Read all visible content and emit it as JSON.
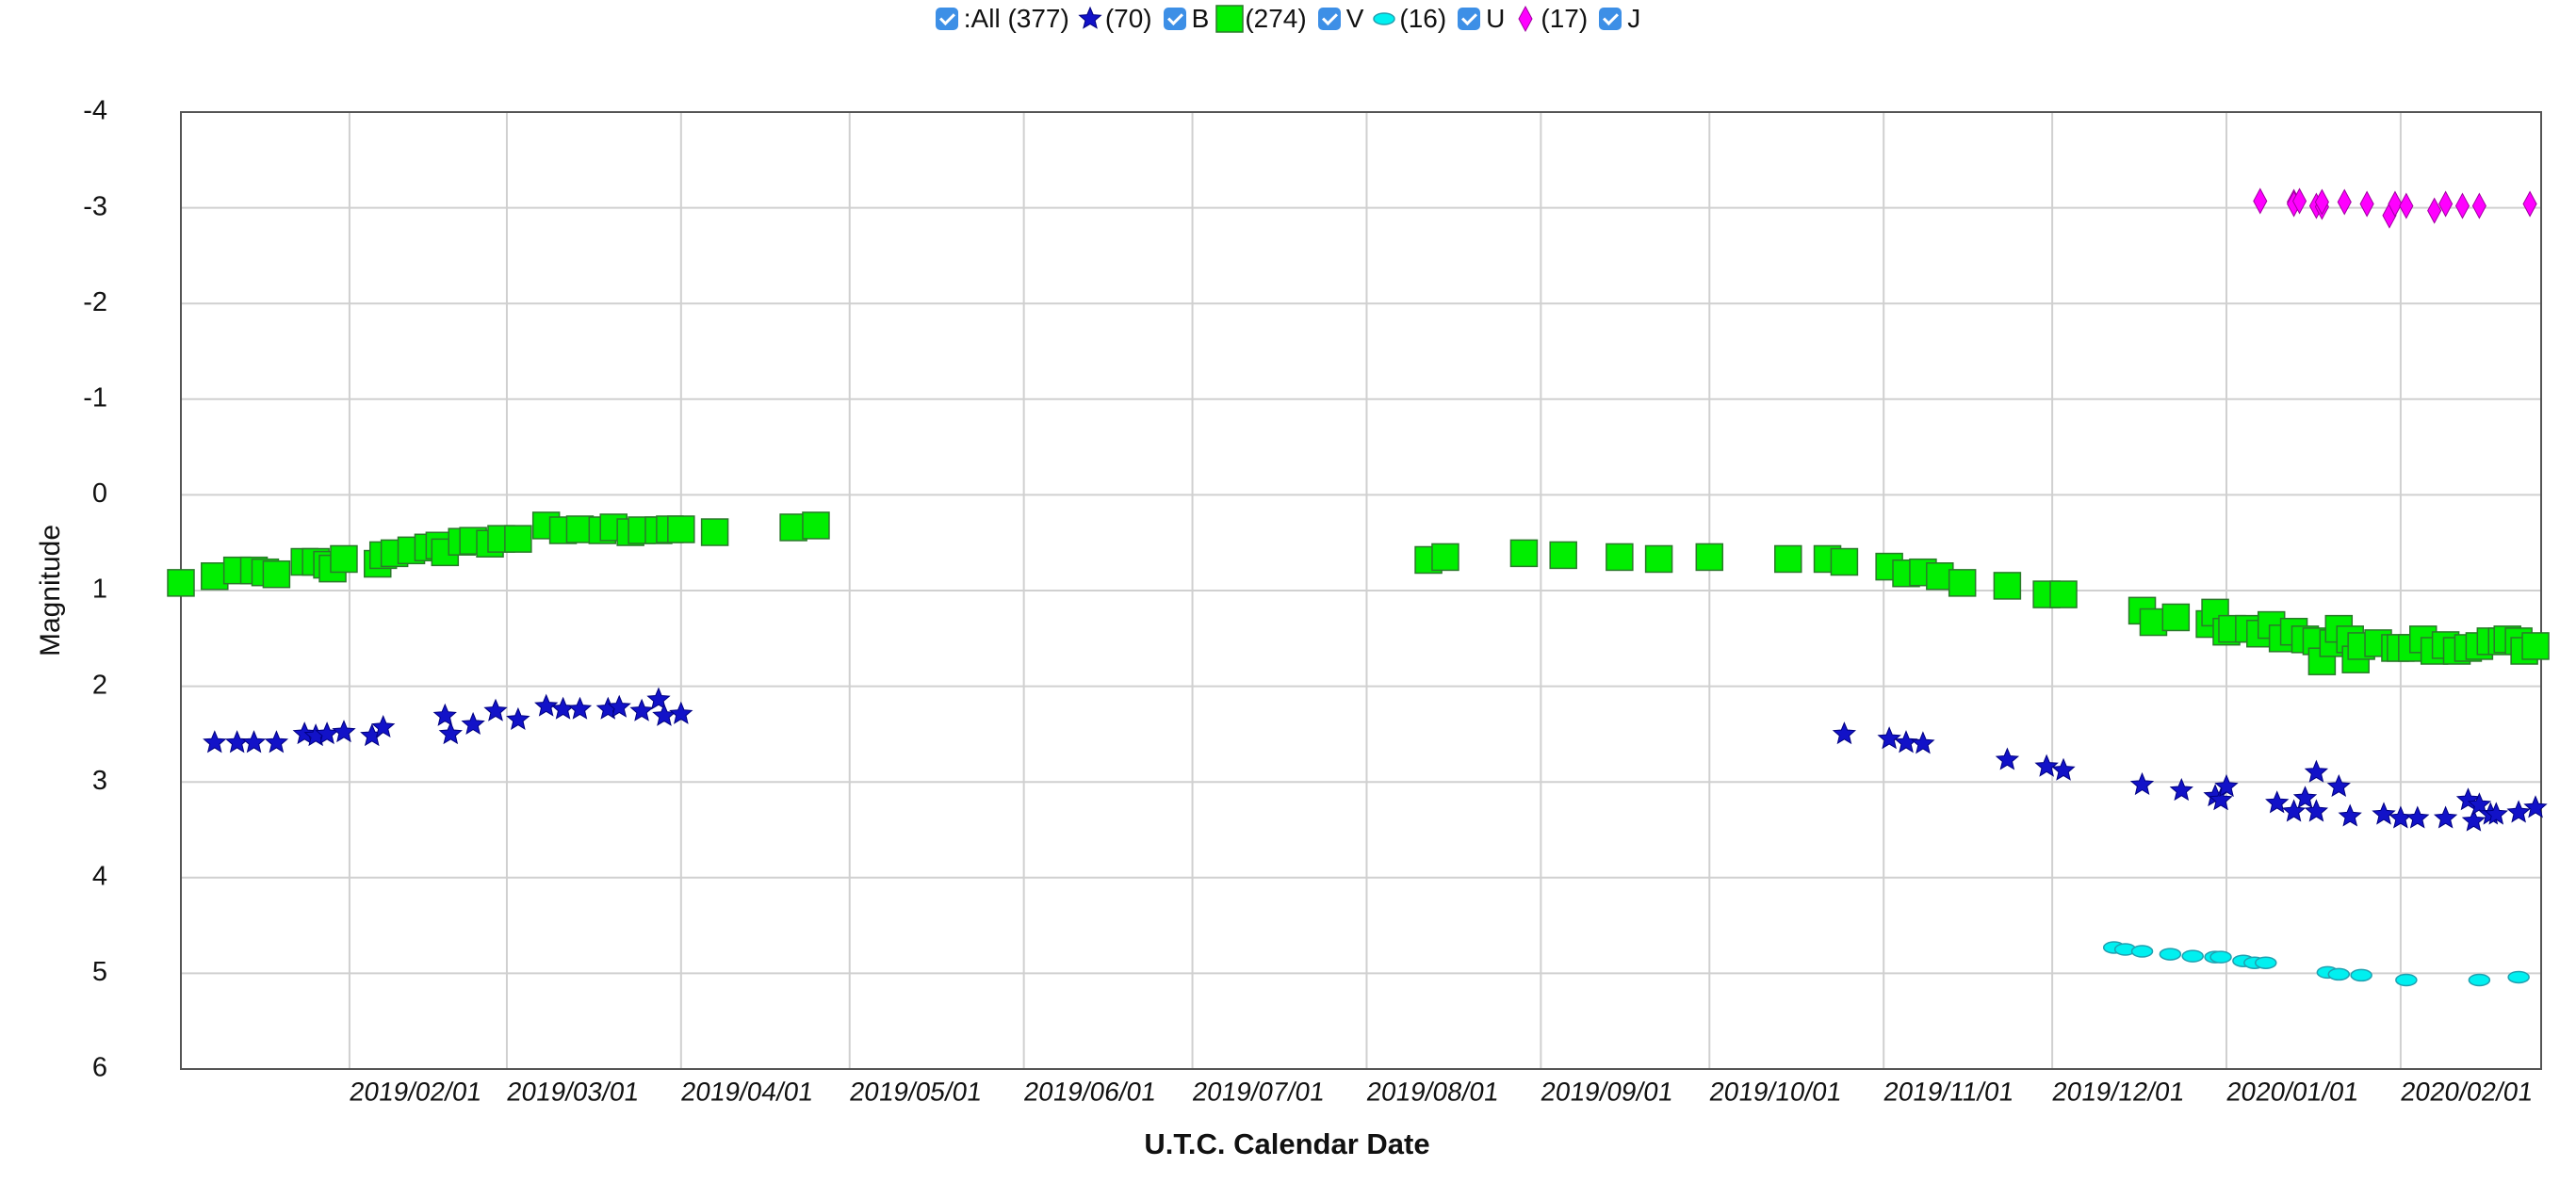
{
  "chart_data": {
    "type": "scatter",
    "legend_all": ":All (377)",
    "xlabel": "U.T.C. Calendar Date",
    "ylabel": "Magnitude",
    "xlim": [
      "2019/01/02",
      "2020/02/26"
    ],
    "xticks": [
      "2019/02/01",
      "2019/03/01",
      "2019/04/01",
      "2019/05/01",
      "2019/06/01",
      "2019/07/01",
      "2019/08/01",
      "2019/09/01",
      "2019/10/01",
      "2019/11/01",
      "2019/12/01",
      "2020/01/01",
      "2020/02/01"
    ],
    "ylim": [
      6,
      -4
    ],
    "yticks": [
      -4,
      -3,
      -2,
      -1,
      0,
      1,
      2,
      3,
      4,
      5,
      6
    ],
    "grid": true,
    "series": [
      {
        "name": "B",
        "count_label": "(70)",
        "marker": "star",
        "color": "#1212c8",
        "x": [
          "2019/01/08",
          "2019/01/12",
          "2019/01/15",
          "2019/01/19",
          "2019/01/24",
          "2019/01/26",
          "2019/01/28",
          "2019/01/31",
          "2019/02/05",
          "2019/02/07",
          "2019/02/18",
          "2019/02/19",
          "2019/02/23",
          "2019/02/27",
          "2019/03/03",
          "2019/03/08",
          "2019/03/11",
          "2019/03/14",
          "2019/03/19",
          "2019/03/21",
          "2019/03/25",
          "2019/03/28",
          "2019/03/29",
          "2019/04/01",
          "2019/10/25",
          "2019/11/02",
          "2019/11/05",
          "2019/11/08",
          "2019/11/23",
          "2019/11/30",
          "2019/12/03",
          "2019/12/17",
          "2019/12/24",
          "2019/12/30",
          "2019/12/31",
          "2020/01/01",
          "2020/01/10",
          "2020/01/13",
          "2020/01/15",
          "2020/01/17",
          "2020/01/17",
          "2020/01/21",
          "2020/01/23",
          "2020/01/29",
          "2020/02/01",
          "2020/02/04",
          "2020/02/09",
          "2020/02/13",
          "2020/02/14",
          "2020/02/15",
          "2020/02/17",
          "2020/02/18",
          "2020/02/22",
          "2020/02/25"
        ],
        "values": [
          2.59,
          2.59,
          2.59,
          2.59,
          2.5,
          2.52,
          2.5,
          2.48,
          2.52,
          2.43,
          2.31,
          2.5,
          2.4,
          2.26,
          2.35,
          2.21,
          2.24,
          2.24,
          2.24,
          2.22,
          2.26,
          2.14,
          2.31,
          2.29,
          2.5,
          2.55,
          2.59,
          2.6,
          2.77,
          2.84,
          2.88,
          3.03,
          3.09,
          3.15,
          3.19,
          3.05,
          3.22,
          3.31,
          3.17,
          3.31,
          2.9,
          3.05,
          3.36,
          3.34,
          3.38,
          3.38,
          3.38,
          3.19,
          3.41,
          3.24,
          3.34,
          3.34,
          3.32,
          3.27
        ]
      },
      {
        "name": "V",
        "count_label": "(274)",
        "marker": "square",
        "color": "#00ee00",
        "x": [
          "2019/01/02",
          "2019/01/08",
          "2019/01/12",
          "2019/01/15",
          "2019/01/17",
          "2019/01/19",
          "2019/01/24",
          "2019/01/26",
          "2019/01/28",
          "2019/01/29",
          "2019/01/31",
          "2019/02/06",
          "2019/02/07",
          "2019/02/09",
          "2019/02/12",
          "2019/02/15",
          "2019/02/17",
          "2019/02/18",
          "2019/02/21",
          "2019/02/23",
          "2019/02/26",
          "2019/02/28",
          "2019/03/03",
          "2019/03/08",
          "2019/03/11",
          "2019/03/14",
          "2019/03/18",
          "2019/03/20",
          "2019/03/23",
          "2019/03/25",
          "2019/03/28",
          "2019/03/30",
          "2019/04/01",
          "2019/04/07",
          "2019/04/21",
          "2019/04/25",
          "2019/08/12",
          "2019/08/15",
          "2019/08/29",
          "2019/09/05",
          "2019/09/15",
          "2019/09/22",
          "2019/10/01",
          "2019/10/15",
          "2019/10/22",
          "2019/10/25",
          "2019/11/02",
          "2019/11/05",
          "2019/11/08",
          "2019/11/11",
          "2019/11/15",
          "2019/11/23",
          "2019/11/30",
          "2019/12/03",
          "2019/12/17",
          "2019/12/19",
          "2019/12/23",
          "2019/12/29",
          "2019/12/30",
          "2020/01/01",
          "2020/01/02",
          "2020/01/05",
          "2020/01/07",
          "2020/01/09",
          "2020/01/11",
          "2020/01/13",
          "2020/01/15",
          "2020/01/17",
          "2020/01/18",
          "2020/01/20",
          "2020/01/21",
          "2020/01/23",
          "2020/01/24",
          "2020/01/25",
          "2020/01/28",
          "2020/01/31",
          "2020/02/01",
          "2020/02/03",
          "2020/02/05",
          "2020/02/07",
          "2020/02/09",
          "2020/02/11",
          "2020/02/13",
          "2020/02/15",
          "2020/02/17",
          "2020/02/19",
          "2020/02/20",
          "2020/02/22",
          "2020/02/23",
          "2020/02/25"
        ],
        "values": [
          0.92,
          0.85,
          0.79,
          0.79,
          0.81,
          0.83,
          0.7,
          0.7,
          0.73,
          0.77,
          0.67,
          0.72,
          0.63,
          0.61,
          0.58,
          0.55,
          0.53,
          0.6,
          0.49,
          0.48,
          0.51,
          0.46,
          0.46,
          0.32,
          0.37,
          0.36,
          0.37,
          0.34,
          0.39,
          0.37,
          0.37,
          0.36,
          0.36,
          0.39,
          0.34,
          0.32,
          0.68,
          0.65,
          0.61,
          0.63,
          0.65,
          0.67,
          0.65,
          0.67,
          0.67,
          0.7,
          0.75,
          0.82,
          0.81,
          0.85,
          0.92,
          0.95,
          1.04,
          1.04,
          1.21,
          1.33,
          1.28,
          1.35,
          1.23,
          1.43,
          1.4,
          1.4,
          1.45,
          1.36,
          1.5,
          1.43,
          1.51,
          1.53,
          1.74,
          1.55,
          1.4,
          1.51,
          1.72,
          1.58,
          1.55,
          1.6,
          1.6,
          1.6,
          1.51,
          1.63,
          1.57,
          1.63,
          1.6,
          1.58,
          1.53,
          1.53,
          1.51,
          1.53,
          1.63,
          1.58
        ]
      },
      {
        "name": "U",
        "count_label": "(16)",
        "marker": "ellipse",
        "color": "#00f0f0",
        "x": [
          "2019/12/12",
          "2019/12/14",
          "2019/12/17",
          "2019/12/22",
          "2019/12/26",
          "2019/12/30",
          "2019/12/31",
          "2020/01/04",
          "2020/01/06",
          "2020/01/08",
          "2020/01/19",
          "2020/01/21",
          "2020/01/25",
          "2020/02/02",
          "2020/02/15",
          "2020/02/22"
        ],
        "values": [
          4.73,
          4.75,
          4.77,
          4.8,
          4.82,
          4.83,
          4.83,
          4.87,
          4.89,
          4.89,
          4.99,
          5.01,
          5.02,
          5.07,
          5.07,
          5.04
        ]
      },
      {
        "name": "J",
        "count_label": "(17)",
        "marker": "diamond",
        "color": "#ff00ff",
        "x": [
          "2020/01/07",
          "2020/01/13",
          "2020/01/13",
          "2020/01/14",
          "2020/01/17",
          "2020/01/18",
          "2020/01/18",
          "2020/01/22",
          "2020/01/26",
          "2020/01/30",
          "2020/01/31",
          "2020/02/02",
          "2020/02/07",
          "2020/02/09",
          "2020/02/12",
          "2020/02/15",
          "2020/02/24"
        ],
        "values": [
          -3.07,
          -3.06,
          -3.04,
          -3.07,
          -3.02,
          -3.01,
          -3.06,
          -3.06,
          -3.04,
          -2.92,
          -3.04,
          -3.02,
          -2.97,
          -3.04,
          -3.02,
          -3.02,
          -3.04
        ]
      }
    ]
  }
}
